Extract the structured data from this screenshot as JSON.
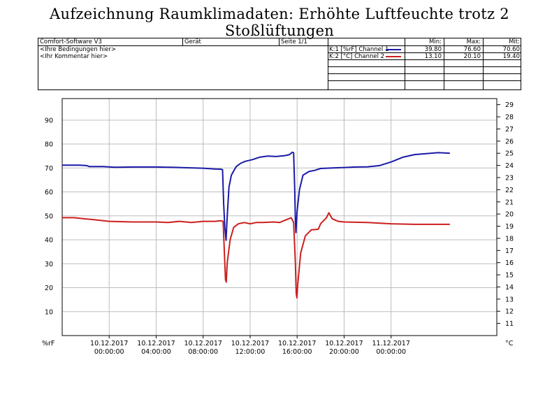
{
  "title": "Aufzeichnung Raumklimadaten: Erhöhte Luftfeuchte trotz 2 Stoßlüftungen",
  "header": {
    "software": "Comfort-Software V3",
    "device": "Gerät",
    "page": "Seite 1/1",
    "conditions": "<Ihre Bedingungen hier>",
    "comment": "<Ihr Kommentar hier>",
    "col_min": "Min:",
    "col_max": "Max:",
    "col_avg": "Mit:",
    "channels": [
      {
        "label": "K:1 [%rF] Channel 1",
        "color": "#1a1aa8",
        "min": "39.80",
        "max": "76.60",
        "avg": "70.60"
      },
      {
        "label": "K:2 [°C] Channel 2",
        "color": "#cc1f1f",
        "min": "13.10",
        "max": "20.10",
        "avg": "19.40"
      }
    ]
  },
  "chart_data": {
    "type": "line",
    "left_axis": {
      "unit": "%rF",
      "ticks": [
        "10",
        "20",
        "30",
        "40",
        "50",
        "60",
        "70",
        "80",
        "90"
      ],
      "range": [
        0,
        99
      ]
    },
    "right_axis": {
      "unit": "°C",
      "ticks": [
        "11",
        "12",
        "13",
        "14",
        "15",
        "16",
        "17",
        "18",
        "19",
        "20",
        "21",
        "22",
        "23",
        "24",
        "25",
        "26",
        "27",
        "28",
        "29"
      ],
      "range": [
        10,
        29.5
      ]
    },
    "x_range": [
      -4,
      33
    ],
    "x_ticks": [
      {
        "x": 0,
        "date": "10.12.2017",
        "time": "00:00:00"
      },
      {
        "x": 4,
        "date": "10.12.2017",
        "time": "04:00:00"
      },
      {
        "x": 8,
        "date": "10.12.2017",
        "time": "08:00:00"
      },
      {
        "x": 12,
        "date": "10.12.2017",
        "time": "12:00:00"
      },
      {
        "x": 16,
        "date": "10.12.2017",
        "time": "16:00:00"
      },
      {
        "x": 20,
        "date": "10.12.2017",
        "time": "20:00:00"
      },
      {
        "x": 24,
        "date": "11.12.2017",
        "time": "00:00:00"
      }
    ],
    "grid": true,
    "series": [
      {
        "name": "Channel 1",
        "axis": "left",
        "color": "#1a1aa8",
        "points": [
          [
            -4,
            71.2
          ],
          [
            -2.5,
            71.2
          ],
          [
            -1.9,
            71.0
          ],
          [
            -1.7,
            70.6
          ],
          [
            -0.5,
            70.6
          ],
          [
            0.5,
            70.3
          ],
          [
            2,
            70.4
          ],
          [
            4,
            70.4
          ],
          [
            6,
            70.2
          ],
          [
            8,
            69.9
          ],
          [
            9,
            69.6
          ],
          [
            9.5,
            69.5
          ],
          [
            9.65,
            69.3
          ],
          [
            9.75,
            55
          ],
          [
            9.85,
            45
          ],
          [
            9.95,
            39.8
          ],
          [
            10.05,
            50
          ],
          [
            10.2,
            62
          ],
          [
            10.4,
            67
          ],
          [
            10.8,
            70.5
          ],
          [
            11.2,
            72
          ],
          [
            11.6,
            72.8
          ],
          [
            12.2,
            73.5
          ],
          [
            12.8,
            74.5
          ],
          [
            13.5,
            75
          ],
          [
            14.2,
            74.8
          ],
          [
            15,
            75.2
          ],
          [
            15.35,
            75.6
          ],
          [
            15.6,
            76.6
          ],
          [
            15.7,
            76.3
          ],
          [
            15.8,
            60
          ],
          [
            15.85,
            48
          ],
          [
            15.9,
            43
          ],
          [
            16.0,
            52
          ],
          [
            16.2,
            61
          ],
          [
            16.5,
            67
          ],
          [
            17,
            68.5
          ],
          [
            17.5,
            69
          ],
          [
            18,
            69.8
          ],
          [
            19,
            70
          ],
          [
            20,
            70.2
          ],
          [
            21,
            70.4
          ],
          [
            22,
            70.5
          ],
          [
            23,
            71
          ],
          [
            24,
            72.5
          ],
          [
            25,
            74.5
          ],
          [
            26,
            75.6
          ],
          [
            27,
            76
          ],
          [
            28,
            76.4
          ],
          [
            29,
            76.2
          ]
        ]
      },
      {
        "name": "Channel 2",
        "axis": "right",
        "color": "#cc1f1f",
        "points": [
          [
            -4,
            19.7
          ],
          [
            -3,
            19.7
          ],
          [
            -2,
            19.6
          ],
          [
            -1,
            19.5
          ],
          [
            0,
            19.4
          ],
          [
            2,
            19.35
          ],
          [
            4,
            19.35
          ],
          [
            5,
            19.3
          ],
          [
            6,
            19.4
          ],
          [
            7,
            19.3
          ],
          [
            8,
            19.4
          ],
          [
            9,
            19.4
          ],
          [
            9.5,
            19.45
          ],
          [
            9.7,
            19.4
          ],
          [
            9.8,
            17
          ],
          [
            9.9,
            14.6
          ],
          [
            9.97,
            14.4
          ],
          [
            10.05,
            16
          ],
          [
            10.3,
            17.9
          ],
          [
            10.6,
            18.9
          ],
          [
            11,
            19.2
          ],
          [
            11.5,
            19.3
          ],
          [
            12,
            19.2
          ],
          [
            12.5,
            19.3
          ],
          [
            13,
            19.3
          ],
          [
            14,
            19.35
          ],
          [
            14.5,
            19.3
          ],
          [
            15,
            19.5
          ],
          [
            15.5,
            19.7
          ],
          [
            15.7,
            19.3
          ],
          [
            15.85,
            16
          ],
          [
            15.92,
            13.5
          ],
          [
            15.98,
            13.1
          ],
          [
            16.05,
            14.2
          ],
          [
            16.3,
            16.8
          ],
          [
            16.7,
            18.2
          ],
          [
            17.2,
            18.7
          ],
          [
            17.8,
            18.75
          ],
          [
            18,
            19.2
          ],
          [
            18.5,
            19.7
          ],
          [
            18.7,
            20.1
          ],
          [
            19,
            19.6
          ],
          [
            19.5,
            19.4
          ],
          [
            20,
            19.35
          ],
          [
            22,
            19.3
          ],
          [
            24,
            19.2
          ],
          [
            26,
            19.15
          ],
          [
            29,
            19.15
          ]
        ]
      }
    ]
  }
}
